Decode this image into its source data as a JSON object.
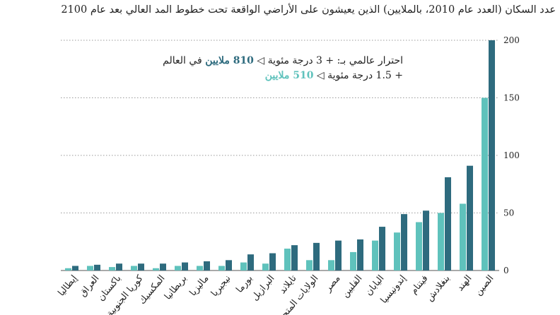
{
  "title": "عدد السكان (العدد عام 2010، بالملايين) الذين يعيشون على الأراضي الواقعة تحت خطوط المد العالي بعد عام 2100",
  "legend": {
    "line1_prefix": "احترار عالمي بـ:   + 3 درجة مئوية ◁ ",
    "line1_value": "810 ملايين",
    "line1_suffix": " في العالم",
    "line2_prefix": "+ 1.5 درجة مئوية ◁ ",
    "line2_value": "510 ملايين"
  },
  "colors": {
    "warming_3": "#2e6b7e",
    "warming_1_5": "#5fc2bc"
  },
  "chart_data": {
    "type": "bar",
    "title": "عدد السكان (العدد عام 2010، بالملايين) الذين يعيشون على الأراضي الواقعة تحت خطوط المد العالي بعد عام 2100",
    "categories": [
      "الصين",
      "الهند",
      "بنغلادش",
      "فيتنام",
      "إندونيسيا",
      "اليابان",
      "الفلبين",
      "مصر",
      "الولايات المتحدة",
      "تايلاند",
      "البرازيل",
      "بورما",
      "نيجيريا",
      "ماليزيا",
      "بريطانيا",
      "المكسيك",
      "كوريا الجنوبية",
      "باكستان",
      "العراق",
      "إيطاليا"
    ],
    "series": [
      {
        "name": "+ 3 درجة مئوية",
        "color": "#2e6b7e",
        "values": [
          200,
          91,
          81,
          52,
          49,
          38,
          27,
          26,
          24,
          22,
          15,
          14,
          9,
          8,
          7,
          6,
          6,
          6,
          5,
          4
        ]
      },
      {
        "name": "+ 1.5 درجة مئوية",
        "color": "#5fc2bc",
        "values": [
          150,
          58,
          50,
          42,
          33,
          26,
          16,
          9,
          9,
          19,
          6,
          7,
          4,
          4,
          4,
          2,
          4,
          3,
          4,
          2
        ]
      }
    ],
    "yticks": [
      0,
      50,
      100,
      150,
      200
    ],
    "ylim": [
      0,
      200
    ],
    "grid": true,
    "legend_position": "top"
  }
}
